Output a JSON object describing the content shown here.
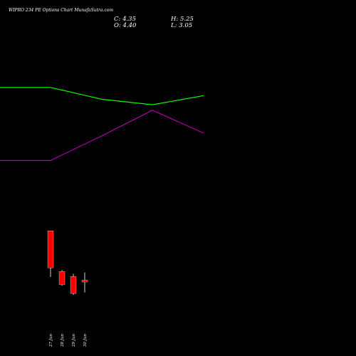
{
  "header": {
    "title": "WIPRO 234  PE Options  Chart MunafaSutra.com",
    "close": "C: 4.35",
    "high": "H: 5.25",
    "open": "O: 4.40",
    "low": "L: 3.05"
  },
  "chart_data": {
    "type": "candlestick",
    "categories": [
      "27 Jun",
      "28 Jun",
      "29 Jun",
      "30 Jun"
    ],
    "candles": [
      {
        "label": "27 Jun",
        "open": 9.8,
        "high": 9.8,
        "low": 4.75,
        "close": 5.75
      },
      {
        "label": "28 Jun",
        "open": 5.35,
        "high": 5.5,
        "low": 3.8,
        "close": 3.9
      },
      {
        "label": "29 Jun",
        "open": 4.8,
        "high": 5.1,
        "low": 2.8,
        "close": 2.95
      },
      {
        "label": "30 Jun",
        "open": 4.4,
        "high": 5.25,
        "low": 3.05,
        "close": 4.35
      }
    ],
    "ylim": [
      0,
      30
    ],
    "lines": [
      {
        "color": "#00ff00",
        "points": [
          [
            0,
            25.5
          ],
          [
            1,
            25.5
          ],
          [
            2,
            24.2
          ],
          [
            3,
            23.6
          ],
          [
            4,
            24.6
          ]
        ]
      },
      {
        "color": "#aa00aa",
        "points": [
          [
            0,
            17.5
          ],
          [
            1,
            17.5
          ],
          [
            2,
            20.2
          ],
          [
            3,
            23.0
          ],
          [
            4,
            20.5
          ]
        ]
      }
    ],
    "colors": {
      "down": "#ff0000",
      "up": "#ff0000",
      "wick": "#ffffff"
    }
  }
}
